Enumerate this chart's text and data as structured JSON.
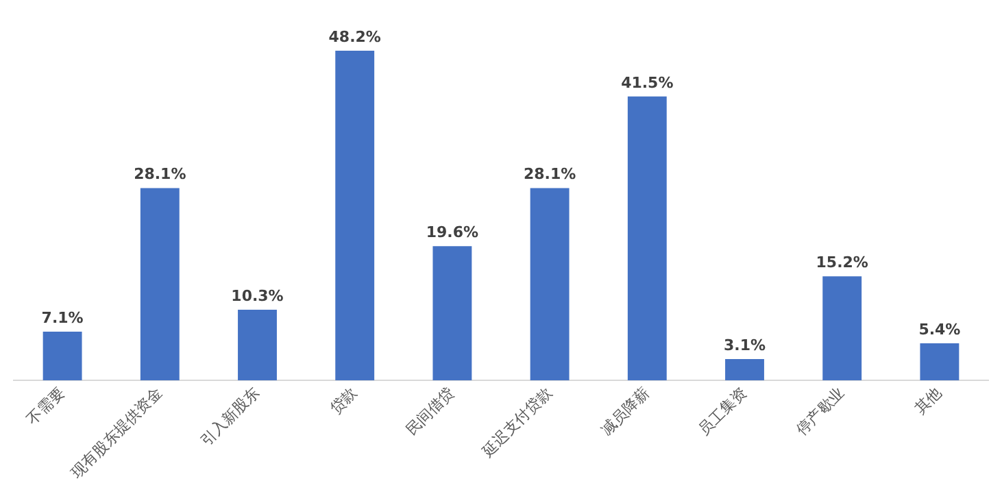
{
  "chart_data": {
    "type": "bar",
    "categories": [
      "不需要",
      "现有股东提供资金",
      "引入新股东",
      "贷款",
      "民间借贷",
      "延迟支付贷款",
      "减员降薪",
      "员工集资",
      "停产歇业",
      "其他"
    ],
    "values": [
      7.1,
      28.1,
      10.3,
      48.2,
      19.6,
      28.1,
      41.5,
      3.1,
      15.2,
      5.4
    ],
    "value_labels": [
      "7.1%",
      "28.1%",
      "10.3%",
      "48.2%",
      "19.6%",
      "28.1%",
      "41.5%",
      "3.1%",
      "15.2%",
      "5.4%"
    ],
    "color": "#4472c4",
    "grid": false,
    "legend": false
  }
}
